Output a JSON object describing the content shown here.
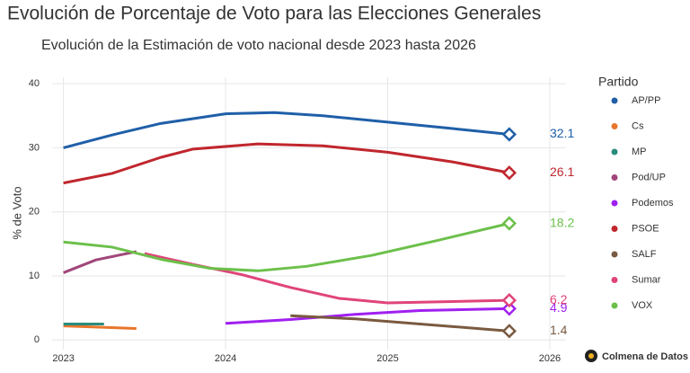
{
  "chart_data": {
    "type": "line",
    "title": "Evolución de Porcentaje de Voto para las Elecciones Generales",
    "subtitle": "Evolución de la Estimación de voto nacional desde 2023 hasta 2026",
    "y_label": "% de Voto",
    "legend_title": "Partido",
    "credit": "Colmena de Datos",
    "xlim": [
      2022.93,
      2026.1
    ],
    "xticks": [
      2023,
      2024,
      2025,
      2026
    ],
    "ylim": [
      -1.5,
      41
    ],
    "yticks": [
      0,
      10,
      20,
      30,
      40
    ],
    "grid": true,
    "series": [
      {
        "name": "AP/PP",
        "color": "#1f5fa8",
        "x": [
          2023.0,
          2023.3,
          2023.6,
          2024.0,
          2024.3,
          2024.6,
          2025.0,
          2025.4,
          2025.75
        ],
        "values": [
          30,
          32,
          33.8,
          35.3,
          35.5,
          35,
          34,
          33,
          32.1
        ]
      },
      {
        "name": "Cs",
        "color": "#e8762c",
        "x": [
          2023.0,
          2023.45
        ],
        "values": [
          2.2,
          1.8
        ]
      },
      {
        "name": "MP",
        "color": "#2a8c7c",
        "x": [
          2023.0,
          2023.25
        ],
        "values": [
          2.5,
          2.5
        ]
      },
      {
        "name": "Pod/UP",
        "color": "#a0467a",
        "x": [
          2023.0,
          2023.2,
          2023.45
        ],
        "values": [
          10.5,
          12.5,
          13.8
        ]
      },
      {
        "name": "Podemos",
        "color": "#a020f0",
        "x": [
          2024.0,
          2024.4,
          2024.8,
          2025.2,
          2025.75
        ],
        "values": [
          2.6,
          3.2,
          4.0,
          4.6,
          4.9
        ]
      },
      {
        "name": "PSOE",
        "color": "#c0262d",
        "x": [
          2023.0,
          2023.3,
          2023.6,
          2023.8,
          2024.2,
          2024.6,
          2025.0,
          2025.4,
          2025.75
        ],
        "values": [
          24.5,
          26,
          28.5,
          29.8,
          30.6,
          30.3,
          29.3,
          27.8,
          26.1
        ]
      },
      {
        "name": "SALF",
        "color": "#7a5a40",
        "x": [
          2024.4,
          2024.8,
          2025.2,
          2025.75
        ],
        "values": [
          3.8,
          3.3,
          2.5,
          1.4
        ]
      },
      {
        "name": "Sumar",
        "color": "#e0447a",
        "x": [
          2023.5,
          2023.8,
          2024.1,
          2024.4,
          2024.7,
          2025.0,
          2025.4,
          2025.75
        ],
        "values": [
          13.5,
          11.8,
          10.2,
          8.2,
          6.5,
          5.8,
          6.0,
          6.2
        ]
      },
      {
        "name": "VOX",
        "color": "#6cc04a",
        "x": [
          2023.0,
          2023.3,
          2023.6,
          2023.9,
          2024.2,
          2024.5,
          2024.9,
          2025.3,
          2025.75
        ],
        "values": [
          15.3,
          14.5,
          12.6,
          11.2,
          10.8,
          11.5,
          13.2,
          15.5,
          18.2
        ]
      }
    ]
  }
}
